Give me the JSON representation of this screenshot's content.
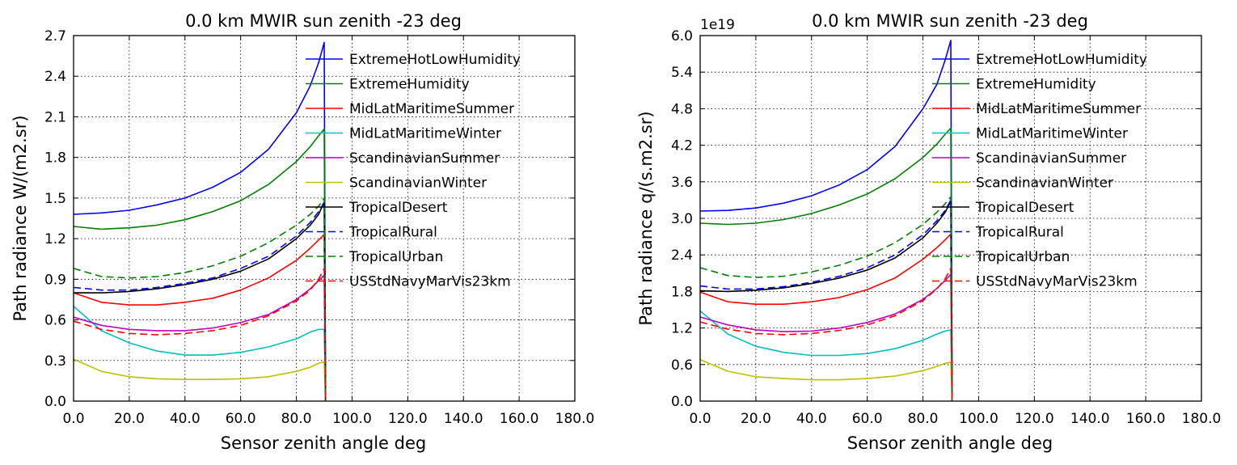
{
  "chart_data": [
    {
      "type": "line",
      "title": "0.0 km MWIR sun zenith -23 deg",
      "xlabel": "Sensor zenith angle deg",
      "ylabel": "Path radiance W/(m2.sr)",
      "offset_label": "",
      "xlim": [
        0,
        180
      ],
      "ylim": [
        0,
        2.7
      ],
      "xticks": [
        "0.0",
        "20.0",
        "40.0",
        "60.0",
        "80.0",
        "100.0",
        "120.0",
        "140.0",
        "160.0",
        "180.0"
      ],
      "yticks": [
        "0.0",
        "0.3",
        "0.6",
        "0.9",
        "1.2",
        "1.5",
        "1.8",
        "2.1",
        "2.4",
        "2.7"
      ],
      "grid": true,
      "legend": "top-right",
      "x": [
        0,
        10,
        20,
        30,
        40,
        50,
        60,
        70,
        80,
        85,
        88,
        90,
        90.5
      ],
      "series": [
        {
          "name": "ExtremeHotLowHumidity",
          "color": "#0000ff",
          "dash": "solid",
          "values": [
            1.38,
            1.39,
            1.41,
            1.45,
            1.5,
            1.58,
            1.69,
            1.86,
            2.13,
            2.33,
            2.5,
            2.65,
            0
          ]
        },
        {
          "name": "ExtremeHumidity",
          "color": "#008000",
          "dash": "solid",
          "values": [
            1.29,
            1.27,
            1.28,
            1.3,
            1.34,
            1.4,
            1.48,
            1.6,
            1.77,
            1.88,
            1.96,
            2.01,
            0
          ]
        },
        {
          "name": "MidLatMaritimeSummer",
          "color": "#ff0000",
          "dash": "solid",
          "values": [
            0.8,
            0.73,
            0.71,
            0.71,
            0.73,
            0.76,
            0.82,
            0.91,
            1.04,
            1.13,
            1.19,
            1.23,
            0
          ]
        },
        {
          "name": "MidLatMaritimeWinter",
          "color": "#00bfbf",
          "dash": "solid",
          "values": [
            0.7,
            0.52,
            0.43,
            0.37,
            0.34,
            0.34,
            0.36,
            0.4,
            0.46,
            0.51,
            0.53,
            0.53,
            0
          ]
        },
        {
          "name": "ScandinavianSummer",
          "color": "#bf00bf",
          "dash": "solid",
          "values": [
            0.62,
            0.56,
            0.53,
            0.52,
            0.52,
            0.54,
            0.58,
            0.64,
            0.75,
            0.83,
            0.89,
            0.93,
            0
          ]
        },
        {
          "name": "ScandinavianWinter",
          "color": "#bfbf00",
          "dash": "solid",
          "values": [
            0.31,
            0.22,
            0.18,
            0.165,
            0.16,
            0.16,
            0.165,
            0.18,
            0.22,
            0.25,
            0.28,
            0.29,
            0
          ]
        },
        {
          "name": "TropicalDesert",
          "color": "#000000",
          "dash": "solid",
          "values": [
            0.8,
            0.8,
            0.81,
            0.83,
            0.86,
            0.9,
            0.96,
            1.05,
            1.2,
            1.3,
            1.38,
            1.47,
            0
          ]
        },
        {
          "name": "TropicalRural",
          "color": "#0000ff",
          "dash": "dashed",
          "values": [
            0.84,
            0.82,
            0.82,
            0.84,
            0.87,
            0.91,
            0.98,
            1.07,
            1.22,
            1.32,
            1.4,
            1.47,
            0
          ]
        },
        {
          "name": "TropicalUrban",
          "color": "#008000",
          "dash": "dashed",
          "values": [
            0.98,
            0.92,
            0.91,
            0.92,
            0.95,
            1.0,
            1.07,
            1.17,
            1.3,
            1.38,
            1.44,
            1.5,
            0
          ]
        },
        {
          "name": "USStdNavyMarVis23km",
          "color": "#ff0000",
          "dash": "dashed",
          "values": [
            0.59,
            0.53,
            0.5,
            0.49,
            0.5,
            0.52,
            0.56,
            0.63,
            0.74,
            0.82,
            0.9,
            0.98,
            0
          ]
        }
      ]
    },
    {
      "type": "line",
      "title": "0.0 km MWIR sun zenith -23 deg",
      "xlabel": "Sensor zenith angle deg",
      "ylabel": "Path radiance q/(s.m2.sr)",
      "offset_label": "1e19",
      "xlim": [
        0,
        180
      ],
      "ylim": [
        0,
        6.0
      ],
      "xticks": [
        "0.0",
        "20.0",
        "40.0",
        "60.0",
        "80.0",
        "100.0",
        "120.0",
        "140.0",
        "160.0",
        "180.0"
      ],
      "yticks": [
        "0.0",
        "0.6",
        "1.2",
        "1.8",
        "2.4",
        "3.0",
        "3.6",
        "4.2",
        "4.8",
        "5.4",
        "6.0"
      ],
      "grid": true,
      "legend": "top-right",
      "x": [
        0,
        10,
        20,
        30,
        40,
        50,
        60,
        70,
        80,
        85,
        88,
        90,
        90.5
      ],
      "series": [
        {
          "name": "ExtremeHotLowHumidity",
          "color": "#0000ff",
          "dash": "solid",
          "values": [
            3.12,
            3.13,
            3.17,
            3.25,
            3.37,
            3.55,
            3.8,
            4.18,
            4.8,
            5.2,
            5.6,
            5.92,
            0
          ]
        },
        {
          "name": "ExtremeHumidity",
          "color": "#008000",
          "dash": "solid",
          "values": [
            2.92,
            2.9,
            2.92,
            2.98,
            3.08,
            3.22,
            3.4,
            3.65,
            4.0,
            4.22,
            4.38,
            4.48,
            0
          ]
        },
        {
          "name": "MidLatMaritimeSummer",
          "color": "#ff0000",
          "dash": "solid",
          "values": [
            1.79,
            1.63,
            1.59,
            1.59,
            1.63,
            1.7,
            1.83,
            2.02,
            2.33,
            2.52,
            2.65,
            2.74,
            0
          ]
        },
        {
          "name": "MidLatMaritimeWinter",
          "color": "#00bfbf",
          "dash": "solid",
          "values": [
            1.48,
            1.1,
            0.9,
            0.8,
            0.75,
            0.75,
            0.78,
            0.86,
            1.0,
            1.1,
            1.15,
            1.17,
            0
          ]
        },
        {
          "name": "ScandinavianSummer",
          "color": "#bf00bf",
          "dash": "solid",
          "values": [
            1.38,
            1.25,
            1.17,
            1.14,
            1.15,
            1.2,
            1.29,
            1.43,
            1.67,
            1.85,
            1.98,
            2.08,
            0
          ]
        },
        {
          "name": "ScandinavianWinter",
          "color": "#bfbf00",
          "dash": "solid",
          "values": [
            0.68,
            0.49,
            0.4,
            0.37,
            0.35,
            0.35,
            0.37,
            0.41,
            0.5,
            0.57,
            0.62,
            0.64,
            0
          ]
        },
        {
          "name": "TropicalDesert",
          "color": "#000000",
          "dash": "solid",
          "values": [
            1.81,
            1.8,
            1.82,
            1.86,
            1.93,
            2.02,
            2.15,
            2.35,
            2.68,
            2.92,
            3.1,
            3.28,
            0
          ]
        },
        {
          "name": "TropicalRural",
          "color": "#0000ff",
          "dash": "dashed",
          "values": [
            1.89,
            1.84,
            1.84,
            1.88,
            1.95,
            2.05,
            2.19,
            2.4,
            2.73,
            2.96,
            3.13,
            3.3,
            0
          ]
        },
        {
          "name": "TropicalUrban",
          "color": "#008000",
          "dash": "dashed",
          "values": [
            2.19,
            2.06,
            2.03,
            2.05,
            2.12,
            2.23,
            2.38,
            2.6,
            2.9,
            3.1,
            3.24,
            3.35,
            0
          ]
        },
        {
          "name": "USStdNavyMarVis23km",
          "color": "#ff0000",
          "dash": "dashed",
          "values": [
            1.3,
            1.18,
            1.11,
            1.09,
            1.11,
            1.16,
            1.25,
            1.4,
            1.65,
            1.84,
            2.01,
            2.18,
            0
          ]
        }
      ]
    }
  ]
}
